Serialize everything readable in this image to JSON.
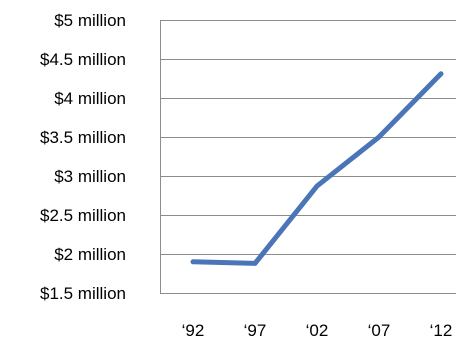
{
  "chart_data": {
    "type": "line",
    "title": "",
    "xlabel": "",
    "ylabel": "",
    "categories": [
      "‘92",
      "‘97",
      "‘02",
      "‘07",
      "‘12"
    ],
    "y_tick_values": [
      1.5,
      2,
      2.5,
      3,
      3.5,
      4,
      4.5,
      5
    ],
    "y_tick_labels": [
      "$1.5 million",
      "$2 million",
      "$2.5 million",
      "$3 million",
      "$3.5 million",
      "$4 million",
      "$4.5 million",
      "$5 million"
    ],
    "ylim": [
      1.5,
      5
    ],
    "grid": true,
    "legend": "none",
    "series": [
      {
        "values": [
          1.9,
          1.88,
          2.87,
          3.5,
          4.31
        ],
        "color": "#4a76b8"
      }
    ]
  }
}
